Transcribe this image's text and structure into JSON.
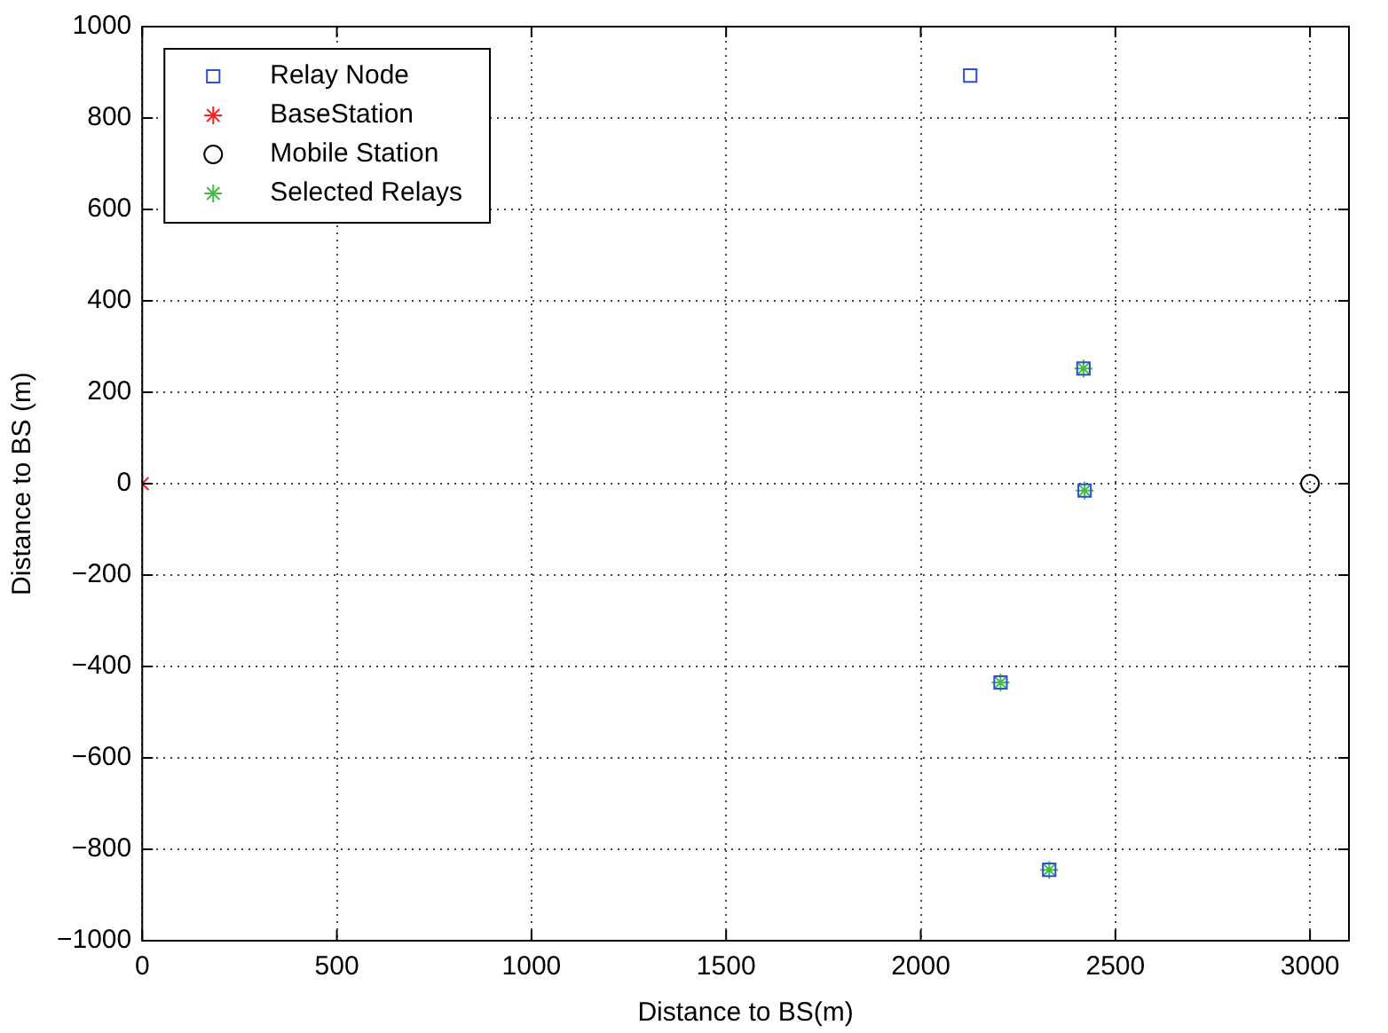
{
  "chart_data": {
    "type": "scatter",
    "xlabel": "Distance to BS(m)",
    "ylabel": "Distance to BS (m)",
    "xlim": [
      0,
      3100
    ],
    "xticks": [
      0,
      500,
      1000,
      1500,
      2000,
      2500,
      3000
    ],
    "ylim": [
      -1000,
      1000
    ],
    "yticks": [
      -1000,
      -800,
      -600,
      -400,
      -200,
      0,
      200,
      400,
      600,
      800,
      1000
    ],
    "grid": true,
    "legend": "top left",
    "series": [
      {
        "name": "Relay Node",
        "color": "#2b4fd6",
        "marker": "square",
        "x": [
          2127,
          2418,
          2421,
          2205,
          2330
        ],
        "values": [
          893,
          252,
          -15,
          -435,
          -845
        ]
      },
      {
        "name": "BaseStation",
        "color": "#ff2020",
        "marker": "cross",
        "x": [
          0
        ],
        "values": [
          0
        ]
      },
      {
        "name": "Mobile Station",
        "color": "#000000",
        "marker": "circle",
        "x": [
          3000
        ],
        "values": [
          0
        ]
      },
      {
        "name": "Selected Relays",
        "color": "#44bb44",
        "marker": "cross",
        "x": [
          2418,
          2421,
          2205,
          2330
        ],
        "values": [
          252,
          -15,
          -435,
          -845
        ]
      }
    ]
  }
}
